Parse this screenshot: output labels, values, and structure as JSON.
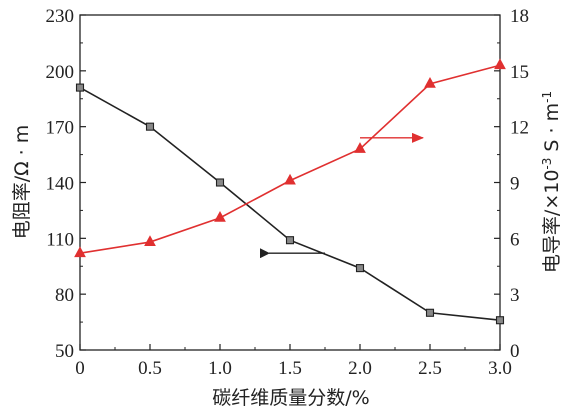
{
  "chart_data": {
    "type": "line",
    "x": [
      0,
      0.5,
      1.0,
      1.5,
      2.0,
      2.5,
      3.0
    ],
    "xlabel": "碳纤维质量分数/%",
    "xlim": [
      0,
      3.0
    ],
    "xticks": [
      "0",
      "0.5",
      "1.0",
      "1.5",
      "2.0",
      "2.5",
      "3.0"
    ],
    "left_axis": {
      "label": "电阻率/Ω · m",
      "ylim": [
        50,
        230
      ],
      "ticks": [
        "50",
        "80",
        "110",
        "140",
        "170",
        "200",
        "230"
      ]
    },
    "right_axis": {
      "label_main": "电导率/×10",
      "label_exp": "-3",
      "label_tail": " S · m",
      "label_exp2": "-1",
      "ylim": [
        0,
        18
      ],
      "ticks": [
        "0",
        "3",
        "6",
        "9",
        "12",
        "15",
        "18"
      ]
    },
    "series": [
      {
        "axis": "left",
        "color": "#222222",
        "marker": "square",
        "marker_fill": "#888888",
        "values": [
          191,
          170,
          140,
          109,
          94,
          70,
          66
        ]
      },
      {
        "axis": "right",
        "color": "#e03030",
        "marker": "triangle",
        "values": [
          5.2,
          5.8,
          7.1,
          9.1,
          10.8,
          14.3,
          15.3
        ]
      }
    ],
    "annotations": [
      {
        "type": "arrow",
        "direction": "left",
        "color": "#222222",
        "axis": "left",
        "x_from": 1.75,
        "x_to": 1.35,
        "y": 102
      },
      {
        "type": "arrow",
        "direction": "right",
        "color": "#e03030",
        "axis": "right",
        "x_from": 2.0,
        "x_to": 2.45,
        "y": 11.4
      }
    ],
    "grid": false,
    "legend": "none"
  }
}
